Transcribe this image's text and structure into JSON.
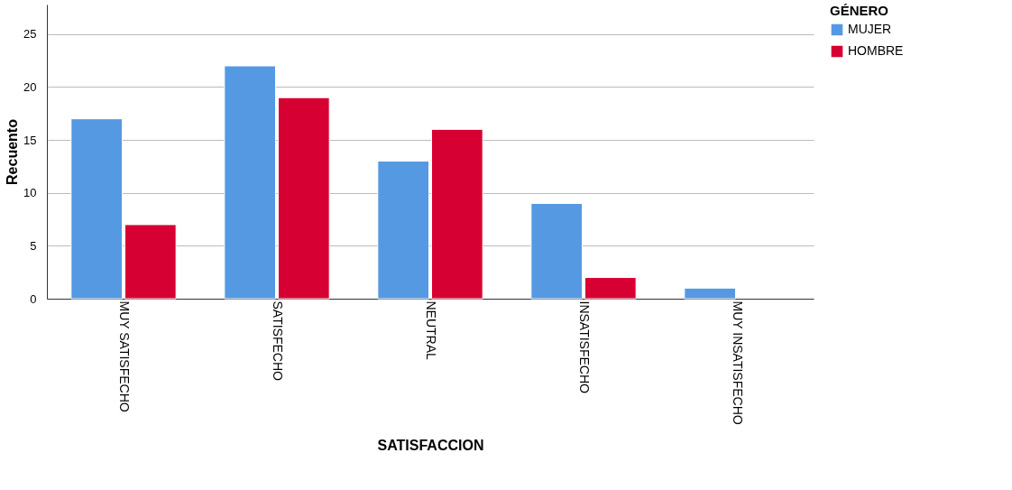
{
  "chart_data": {
    "type": "bar",
    "xlabel": "SATISFACCION",
    "ylabel": "Recuento",
    "legend_title": "GÉNERO",
    "categories": [
      "MUY SATISFECHO",
      "SATISFECHO",
      "NEUTRAL",
      "INSATISFECHO",
      "MUY INSATISFECHO"
    ],
    "series": [
      {
        "name": "MUJER",
        "color": "#5599e2",
        "values": [
          17,
          22,
          13,
          9,
          1
        ]
      },
      {
        "name": "HOMBRE",
        "color": "#d70032",
        "values": [
          7,
          19,
          16,
          2,
          null
        ]
      }
    ],
    "ylim": [
      0,
      27.8
    ],
    "yticks": [
      0,
      5,
      10,
      15,
      20,
      25
    ],
    "grid": "y",
    "legend": "top right"
  }
}
